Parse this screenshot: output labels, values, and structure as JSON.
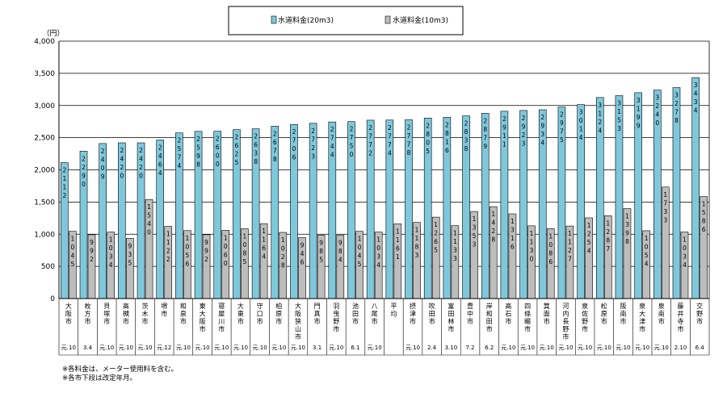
{
  "chart_data": {
    "type": "bar",
    "yunit": "（円）",
    "ylim": [
      0,
      4000
    ],
    "yticks": [
      "0",
      "500",
      "1,000",
      "1,500",
      "2,000",
      "2,500",
      "3,000",
      "3,500",
      "4,000"
    ],
    "grid": true,
    "legend_position": "top-center",
    "series": [
      {
        "name": "水道料金(20m3)",
        "color": "#7fc8dc",
        "values": [
          2112,
          2290,
          2409,
          2420,
          2420,
          2464,
          2574,
          2598,
          2600,
          2625,
          2638,
          2678,
          2706,
          2723,
          2744,
          2750,
          2772,
          2774,
          2778,
          2805,
          2816,
          2838,
          2879,
          2911,
          2923,
          2934,
          2975,
          3014,
          3124,
          3153,
          3199,
          3240,
          3278,
          3434
        ]
      },
      {
        "name": "水道料金(10m3)",
        "color": "#bdbdbd",
        "values": [
          1045,
          992,
          1034,
          935,
          1540,
          1122,
          1056,
          992,
          1060,
          1085,
          1164,
          1028,
          946,
          985,
          984,
          1045,
          1034,
          1161,
          1183,
          1265,
          1133,
          1353,
          1428,
          1316,
          1130,
          1086,
          1127,
          1254,
          1287,
          1398,
          1054,
          1733,
          1034,
          1586
        ]
      }
    ],
    "categories": [
      "大阪市",
      "枚方市",
      "貝塚市",
      "高槻市",
      "茨木市",
      "堺市",
      "和泉市",
      "東大阪市",
      "寝屋川市",
      "大東市",
      "守口市",
      "柏原市",
      "大阪狭山市",
      "門真市",
      "羽曳野市",
      "池田市",
      "八尾市",
      "平均",
      "摂津市",
      "吹田市",
      "富田林市",
      "豊中市",
      "岸和田市",
      "高石市",
      "四條畷市",
      "箕面市",
      "河内長野市",
      "泉佐野市",
      "松原市",
      "阪南市",
      "泉大津市",
      "泉南市",
      "藤井寺市",
      "交野市"
    ],
    "revisions": [
      "元.10",
      "3.4",
      "元.10",
      "元.10",
      "元.10",
      "元.12",
      "元.10",
      "元.10",
      "元.10",
      "元.10",
      "元.10",
      "元.10",
      "元.10",
      "3.1",
      "元.10",
      "6.1",
      "元.10",
      "",
      "元.10",
      "2.4",
      "3.10",
      "7.2",
      "6.2",
      "元.10",
      "元.10",
      "元.10",
      "元.10",
      "元.10",
      "元.10",
      "元.10",
      "元.10",
      "元.10",
      "2.10",
      "6.4"
    ]
  },
  "footnotes": [
    "※各料金は、メーター使用料を含む。",
    "※各市下段は改定年月。"
  ]
}
